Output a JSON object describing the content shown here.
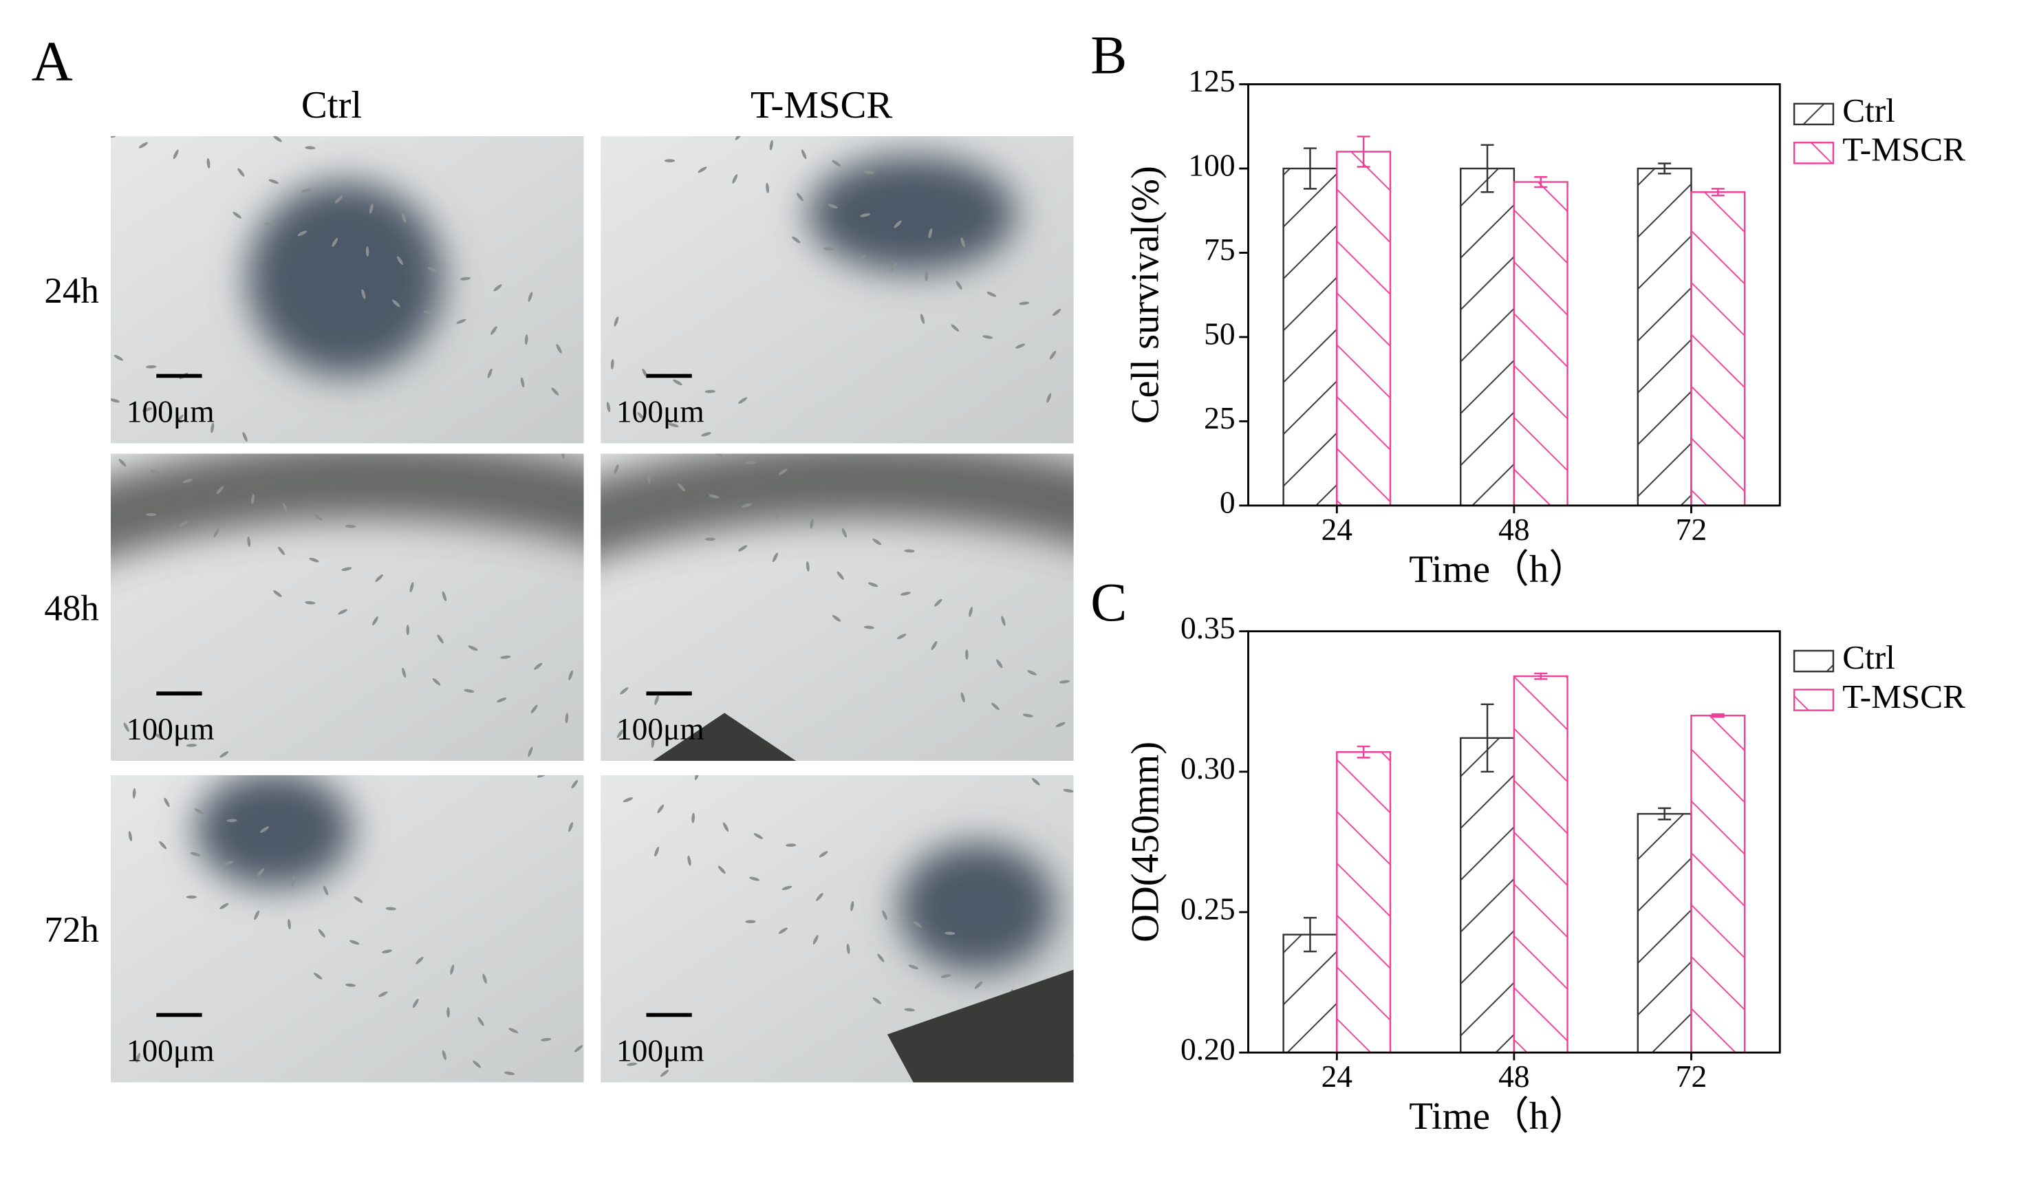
{
  "panel_a": {
    "label": "A",
    "columns": [
      "Ctrl",
      "T-MSCR"
    ],
    "rows": [
      "24h",
      "48h",
      "72h"
    ],
    "scale_bar": "100μm"
  },
  "chart_data": [
    {
      "type": "bar",
      "panel_label": "B",
      "xlabel": "Time（h）",
      "ylabel": "Cell survival(%)",
      "categories": [
        "24",
        "48",
        "72"
      ],
      "series": [
        {
          "name": "Ctrl",
          "color": "#333333",
          "hatch": "/",
          "values": [
            100,
            100,
            100
          ],
          "errors": [
            6,
            7,
            1.5
          ]
        },
        {
          "name": "T-MSCR",
          "color": "#f0409a",
          "hatch": "\\",
          "values": [
            105,
            96,
            93
          ],
          "errors": [
            4.5,
            1.5,
            1
          ]
        }
      ],
      "ylim": [
        0,
        125
      ],
      "yticks": [
        0,
        25,
        50,
        75,
        100,
        125
      ]
    },
    {
      "type": "bar",
      "panel_label": "C",
      "xlabel": "Time（h）",
      "ylabel": "OD(450mm)",
      "categories": [
        "24",
        "48",
        "72"
      ],
      "series": [
        {
          "name": "Ctrl",
          "color": "#333333",
          "hatch": "/",
          "values": [
            0.242,
            0.312,
            0.285
          ],
          "errors": [
            0.006,
            0.012,
            0.002
          ]
        },
        {
          "name": "T-MSCR",
          "color": "#f0409a",
          "hatch": "\\",
          "values": [
            0.307,
            0.334,
            0.32
          ],
          "errors": [
            0.002,
            0.001,
            0.0005
          ]
        }
      ],
      "ylim": [
        0.2,
        0.35
      ],
      "yticks": [
        {
          "value": 0.2,
          "label": "0.20"
        },
        {
          "value": 0.25,
          "label": "0.25"
        },
        {
          "value": 0.3,
          "label": "0.30"
        },
        {
          "value": 0.35,
          "label": "0.35"
        }
      ]
    }
  ]
}
